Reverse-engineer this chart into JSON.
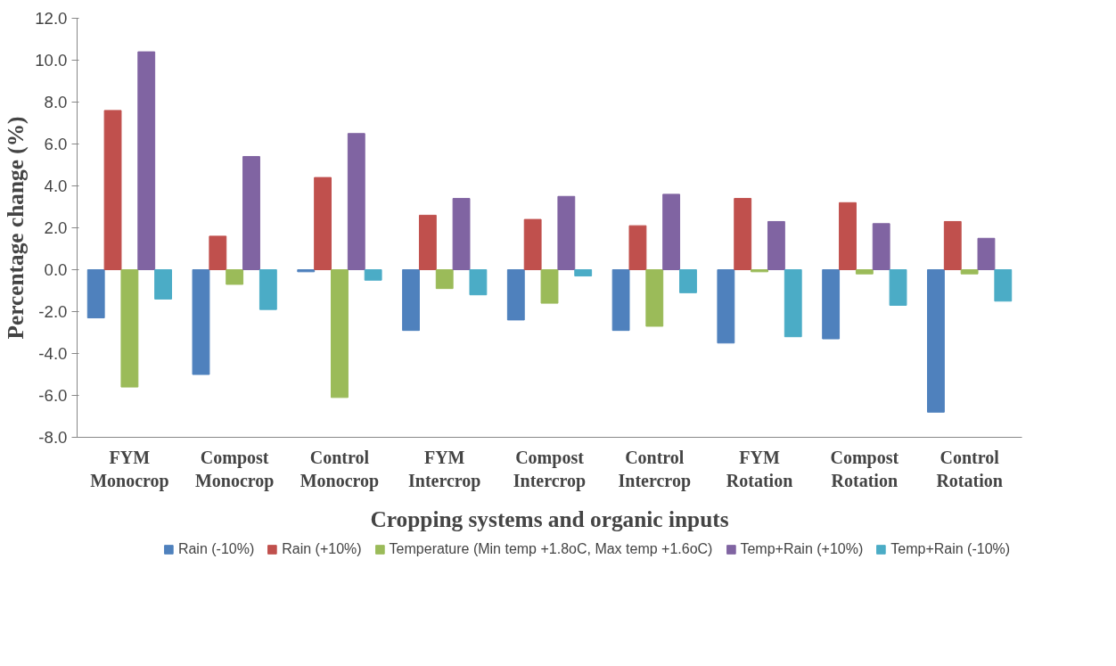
{
  "chart_data": {
    "type": "bar",
    "xlabel": "Cropping systems and organic inputs",
    "ylabel": "Percentage change (%)",
    "categories": [
      "FYM Monocrop",
      "Compost Monocrop",
      "Control Monocrop",
      "FYM Intercrop",
      "Compost Intercrop",
      "Control Intercrop",
      "FYM Rotation",
      "Compost Rotation",
      "Control Rotation"
    ],
    "series": [
      {
        "name": "Rain (-10%)",
        "color": "#4f81bd",
        "values": [
          -2.3,
          -5.0,
          -0.1,
          -2.9,
          -2.4,
          -2.9,
          -3.5,
          -3.3,
          -6.8
        ]
      },
      {
        "name": "Rain (+10%)",
        "color": "#c0504d",
        "values": [
          7.6,
          1.6,
          4.4,
          2.6,
          2.4,
          2.1,
          3.4,
          3.2,
          2.3
        ]
      },
      {
        "name": "Temperature (Min temp +1.8oC, Max temp +1.6oC)",
        "color": "#9bbb59",
        "values": [
          -5.6,
          -0.7,
          -6.1,
          -0.9,
          -1.6,
          -2.7,
          -0.1,
          -0.2,
          -0.2
        ]
      },
      {
        "name": "Temp+Rain (+10%)",
        "color": "#8064a2",
        "values": [
          10.4,
          5.4,
          6.5,
          3.4,
          3.5,
          3.6,
          2.3,
          2.2,
          1.5
        ]
      },
      {
        "name": "Temp+Rain (-10%)",
        "color": "#4bacc6",
        "values": [
          -1.4,
          -1.9,
          -0.5,
          -1.2,
          -0.3,
          -1.1,
          -3.2,
          -1.7,
          -1.5
        ]
      }
    ],
    "ylim": [
      -8,
      12
    ],
    "yticks": [
      {
        "value": -8,
        "label": "-8.0"
      },
      {
        "value": -6,
        "label": "-6.0"
      },
      {
        "value": -4,
        "label": "-4.0"
      },
      {
        "value": -2,
        "label": "-2.0"
      },
      {
        "value": 0,
        "label": "0.0"
      },
      {
        "value": 2,
        "label": "2.0"
      },
      {
        "value": 4,
        "label": "4.0"
      },
      {
        "value": 6,
        "label": "6.0"
      },
      {
        "value": 8,
        "label": "8.0"
      },
      {
        "value": 10,
        "label": "10.0"
      },
      {
        "value": 12,
        "label": "12.0"
      }
    ],
    "grid": false,
    "legend": "bottom"
  }
}
